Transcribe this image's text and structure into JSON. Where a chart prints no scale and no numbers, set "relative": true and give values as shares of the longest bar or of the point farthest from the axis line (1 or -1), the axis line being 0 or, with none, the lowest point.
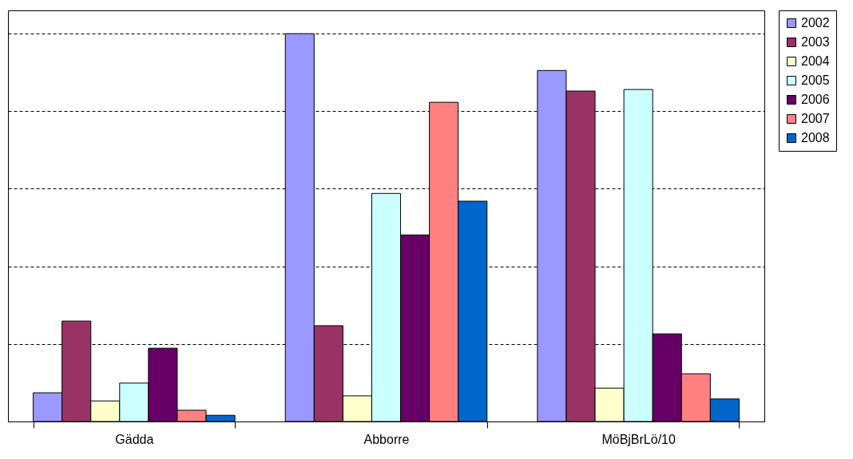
{
  "chart_data": {
    "type": "bar",
    "relative": true,
    "categories": [
      "Gädda",
      "Abborre",
      "MöBjBrLö/10"
    ],
    "series": [
      {
        "name": "2002",
        "color": "#9999ff",
        "values": [
          0.074,
          1,
          0.905
        ]
      },
      {
        "name": "2003",
        "color": "#993366",
        "values": [
          0.259,
          0.247,
          0.852
        ]
      },
      {
        "name": "2004",
        "color": "#ffffcc",
        "values": [
          0.053,
          0.066,
          0.086
        ]
      },
      {
        "name": "2005",
        "color": "#ccffff",
        "values": [
          0.099,
          0.588,
          0.856
        ]
      },
      {
        "name": "2006",
        "color": "#660066",
        "values": [
          0.189,
          0.481,
          0.226
        ]
      },
      {
        "name": "2007",
        "color": "#ff8080",
        "values": [
          0.029,
          0.823,
          0.123
        ]
      },
      {
        "name": "2008",
        "color": "#0066cc",
        "values": [
          0.016,
          0.568,
          0.058
        ]
      }
    ],
    "grid": "y",
    "legend": "right"
  }
}
